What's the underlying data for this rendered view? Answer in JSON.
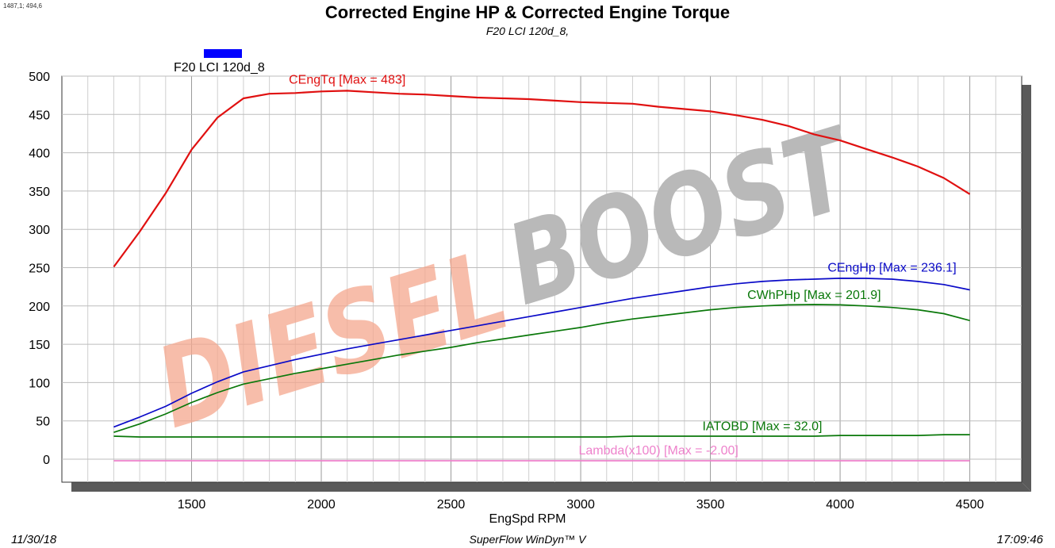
{
  "header": {
    "coord_readout": "1487,1; 494,6",
    "title": "Corrected Engine HP & Corrected Engine Torque",
    "subtitle": "F20 LCI 120d_8,",
    "legend_label": "F20 LCI 120d_8"
  },
  "footer": {
    "date": "11/30/18",
    "software": "SuperFlow WinDyn™ V",
    "time": "17:09:46"
  },
  "watermark": {
    "part1": "DIESEL",
    "part2": "BOOST",
    "color1": "#f4a78e",
    "color2": "#b9b9b9"
  },
  "chart_data": {
    "type": "line",
    "title": "Corrected Engine HP & Corrected Engine Torque",
    "subtitle": "F20 LCI 120d_8,",
    "xlabel": "EngSpd  RPM",
    "ylabel": "",
    "xlim": [
      1000,
      4700
    ],
    "ylim": [
      -30,
      500
    ],
    "x_ticks": [
      1500,
      2000,
      2500,
      3000,
      3500,
      4000,
      4500
    ],
    "y_ticks": [
      0,
      50,
      100,
      150,
      200,
      250,
      300,
      350,
      400,
      450,
      500
    ],
    "grid": true,
    "legend": "top-left",
    "x": [
      1200,
      1300,
      1400,
      1500,
      1600,
      1700,
      1800,
      1900,
      2000,
      2100,
      2200,
      2300,
      2400,
      2500,
      2600,
      2700,
      2800,
      2900,
      3000,
      3100,
      3200,
      3300,
      3400,
      3500,
      3600,
      3700,
      3800,
      3900,
      4000,
      4100,
      4200,
      4300,
      4400,
      4500
    ],
    "series": [
      {
        "name": "CEngTq",
        "label": "CEngTq [Max = 483]",
        "color": "#e01010",
        "values": [
          251,
          297,
          347,
          404,
          446,
          471,
          477,
          478,
          480,
          481,
          479,
          477,
          476,
          474,
          472,
          471,
          470,
          468,
          466,
          465,
          464,
          460,
          457,
          454,
          449,
          443,
          435,
          424,
          416,
          405,
          394,
          382,
          367,
          346
        ]
      },
      {
        "name": "CEngHp",
        "label": "CEngHp [Max = 236.1]",
        "color": "#0a0ac8",
        "values": [
          42,
          55,
          69,
          86,
          101,
          114,
          122,
          130,
          137,
          144,
          150,
          156,
          162,
          168,
          174,
          180,
          186,
          192,
          198,
          204,
          210,
          215,
          220,
          225,
          229,
          232,
          234,
          235,
          236.1,
          236,
          235,
          232,
          228,
          221
        ]
      },
      {
        "name": "CWhPHp",
        "label": "CWhPHp [Max = 201.9]",
        "color": "#0a780a",
        "values": [
          35,
          46,
          59,
          74,
          87,
          98,
          105,
          112,
          118,
          124,
          130,
          136,
          141,
          146,
          152,
          157,
          162,
          167,
          172,
          178,
          183,
          187,
          191,
          195,
          198,
          200,
          201.5,
          201.9,
          201.5,
          200,
          198,
          195,
          190,
          181
        ]
      },
      {
        "name": "IATOBD",
        "label": "IATOBD [Max = 32.0]",
        "color": "#0a780a",
        "values": [
          30,
          29,
          29,
          29,
          29,
          29,
          29,
          29,
          29,
          29,
          29,
          29,
          29,
          29,
          29,
          29,
          29,
          29,
          29,
          29,
          30,
          30,
          30,
          30,
          30,
          30,
          30,
          30,
          31,
          31,
          31,
          31,
          32,
          32
        ]
      },
      {
        "name": "Lambda(x100)",
        "label": "Lambda(x100) [Max = -2.00]",
        "color": "#ee82cc",
        "values": [
          -2,
          -2,
          -2,
          -2,
          -2,
          -2,
          -2,
          -2,
          -2,
          -2,
          -2,
          -2,
          -2,
          -2,
          -2,
          -2,
          -2,
          -2,
          -2,
          -2,
          -2,
          -2,
          -2,
          -2,
          -2,
          -2,
          -2,
          -2,
          -2,
          -2,
          -2,
          -2,
          -2,
          -2
        ]
      }
    ],
    "annotations": [
      {
        "series": "CEngTq",
        "text": "CEngTq [Max = 483]",
        "x": 2100,
        "y": 490
      },
      {
        "series": "CEngHp",
        "text": "CEngHp [Max = 236.1]",
        "x": 4200,
        "y": 245
      },
      {
        "series": "CWhPHp",
        "text": "CWhPHp [Max = 201.9]",
        "x": 3900,
        "y": 209
      },
      {
        "series": "IATOBD",
        "text": "IATOBD [Max = 32.0]",
        "x": 3700,
        "y": 38
      },
      {
        "series": "Lambda(x100)",
        "text": "Lambda(x100) [Max = -2.00]",
        "x": 3300,
        "y": 6
      }
    ]
  }
}
